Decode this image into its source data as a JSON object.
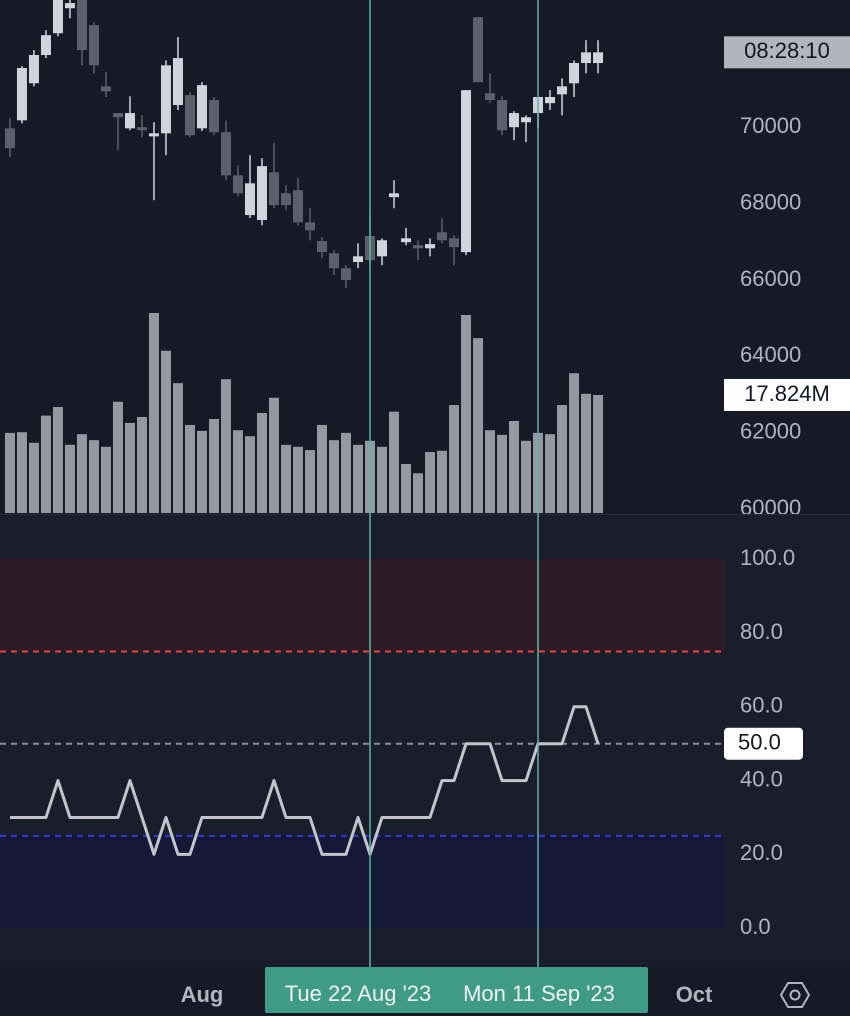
{
  "chart_data": [
    {
      "type": "candlestick",
      "x": [
        0,
        1,
        2,
        3,
        4,
        5,
        6,
        7,
        8,
        9,
        10,
        11,
        12,
        13,
        14,
        15,
        16,
        17,
        18,
        19,
        20,
        21,
        22,
        23,
        24,
        25,
        26,
        27,
        28,
        29,
        30,
        31,
        32,
        33,
        34,
        35,
        36,
        37,
        38,
        39,
        40,
        41,
        42,
        43,
        44,
        45,
        46,
        47,
        48,
        49
      ],
      "open": [
        69970,
        70180,
        71150,
        71890,
        72460,
        73115,
        73460,
        72670,
        71070,
        70370,
        69970,
        70000,
        69760,
        69840,
        70580,
        70840,
        69970,
        70710,
        69870,
        68740,
        67700,
        67570,
        68820,
        68270,
        68350,
        67510,
        67020,
        66700,
        66310,
        66470,
        67150,
        66620,
        68170,
        66990,
        66910,
        66830,
        67250,
        67090,
        66730,
        72880,
        70890,
        70710,
        70000,
        70130,
        70370,
        70630,
        70860,
        71150,
        71680,
        71680
      ],
      "high": [
        70240,
        71600,
        72020,
        72540,
        73700,
        73600,
        73600,
        72750,
        71440,
        70370,
        70810,
        70310,
        70130,
        71750,
        72360,
        70920,
        71180,
        70790,
        70180,
        69000,
        69270,
        69190,
        69580,
        68480,
        68670,
        67880,
        67120,
        66780,
        66390,
        66960,
        67700,
        67090,
        68610,
        67360,
        67040,
        67090,
        67620,
        67170,
        70970,
        72880,
        71410,
        70810,
        70420,
        70310,
        70790,
        70970,
        71280,
        71750,
        72280,
        72280
      ],
      "low": [
        69220,
        70100,
        71070,
        71810,
        72380,
        72850,
        71620,
        71410,
        70790,
        69400,
        69920,
        69740,
        68090,
        69270,
        70450,
        69740,
        69900,
        69790,
        68610,
        68190,
        67620,
        67430,
        67880,
        67830,
        67430,
        67040,
        66570,
        66130,
        65790,
        66310,
        66390,
        66390,
        67880,
        66910,
        66520,
        66620,
        66960,
        66390,
        66650,
        71180,
        70630,
        69790,
        69660,
        69610,
        69970,
        70450,
        70310,
        70790,
        71410,
        71410
      ],
      "close": [
        69450,
        71550,
        71890,
        72410,
        73400,
        73250,
        72020,
        71620,
        70940,
        70260,
        70370,
        69920,
        69840,
        71620,
        71810,
        69790,
        71100,
        69870,
        68740,
        68270,
        68530,
        68980,
        67960,
        67960,
        67510,
        67300,
        66730,
        66310,
        66000,
        66620,
        66520,
        67040,
        68270,
        67090,
        66830,
        66940,
        67040,
        66860,
        70970,
        71180,
        70710,
        69920,
        70370,
        70260,
        70790,
        70790,
        71070,
        71680,
        71960,
        71960
      ],
      "up_color": "#d1d4dc",
      "down_color": "#5d606b",
      "xlim": [
        -0.83,
        59.58
      ],
      "ylim": [
        59900,
        73330
      ],
      "yticks": [
        60000,
        62000,
        64000,
        66000,
        68000,
        70000
      ],
      "countdown": "08:28:10",
      "volume": {
        "color": "#9598a1",
        "values": [
          12.1,
          12.2,
          10.6,
          14.7,
          16.0,
          10.3,
          11.9,
          11.0,
          10.0,
          16.8,
          13.6,
          14.5,
          30.2,
          24.5,
          19.6,
          13.3,
          12.4,
          14.2,
          20.2,
          12.5,
          11.6,
          15.1,
          17.4,
          10.3,
          10.0,
          9.5,
          13.3,
          11.0,
          12.1,
          10.3,
          10.9,
          10.0,
          15.3,
          7.4,
          6.0,
          9.2,
          9.4,
          16.3,
          29.9,
          26.4,
          12.5,
          11.8,
          13.9,
          10.9,
          12.1,
          11.9,
          16.3,
          21.1,
          18.0,
          17.824
        ],
        "current_label": "17.824M"
      }
    },
    {
      "type": "line",
      "color": "#c3c5cb",
      "values": [
        30,
        30,
        30,
        30,
        40,
        30,
        30,
        30,
        30,
        30,
        40,
        30,
        20,
        30,
        20,
        20,
        30,
        30,
        30,
        30,
        30,
        30,
        40,
        30,
        30,
        30,
        20,
        20,
        20,
        30,
        20,
        30,
        30,
        30,
        30,
        30,
        40,
        40,
        50,
        50,
        50,
        40,
        40,
        40,
        50,
        50,
        50,
        60,
        60,
        50
      ],
      "current_label": "50.0",
      "ylim": [
        -10,
        112
      ],
      "yticks": [
        {
          "value": 0,
          "label": "0.0"
        },
        {
          "value": 20,
          "label": "20.0"
        },
        {
          "value": 40,
          "label": "40.0"
        },
        {
          "value": 60,
          "label": "60.0"
        },
        {
          "value": 80,
          "label": "80.0"
        },
        {
          "value": 100,
          "label": "100.0"
        }
      ],
      "bands": [
        {
          "from": 75,
          "to": 100,
          "color": "#2d1c27",
          "line": 75,
          "line_color": "#e8413f"
        },
        {
          "from": 0,
          "to": 25,
          "color": "#161838",
          "line": 25,
          "line_color": "#2f3bdc"
        }
      ],
      "midline": 50,
      "midline_color": "#8a8d96",
      "xticks": [
        {
          "value": 16,
          "label": "Aug"
        },
        {
          "value": 57,
          "label": "Oct"
        }
      ],
      "crosshairs": [
        {
          "x": 30,
          "label": "Tue 22 Aug '23"
        },
        {
          "x": 44,
          "label": "Mon 11 Sep '23"
        }
      ],
      "crosshair_color": "#5fb3a6",
      "crosshair_label_color": "#3f9b85"
    }
  ]
}
